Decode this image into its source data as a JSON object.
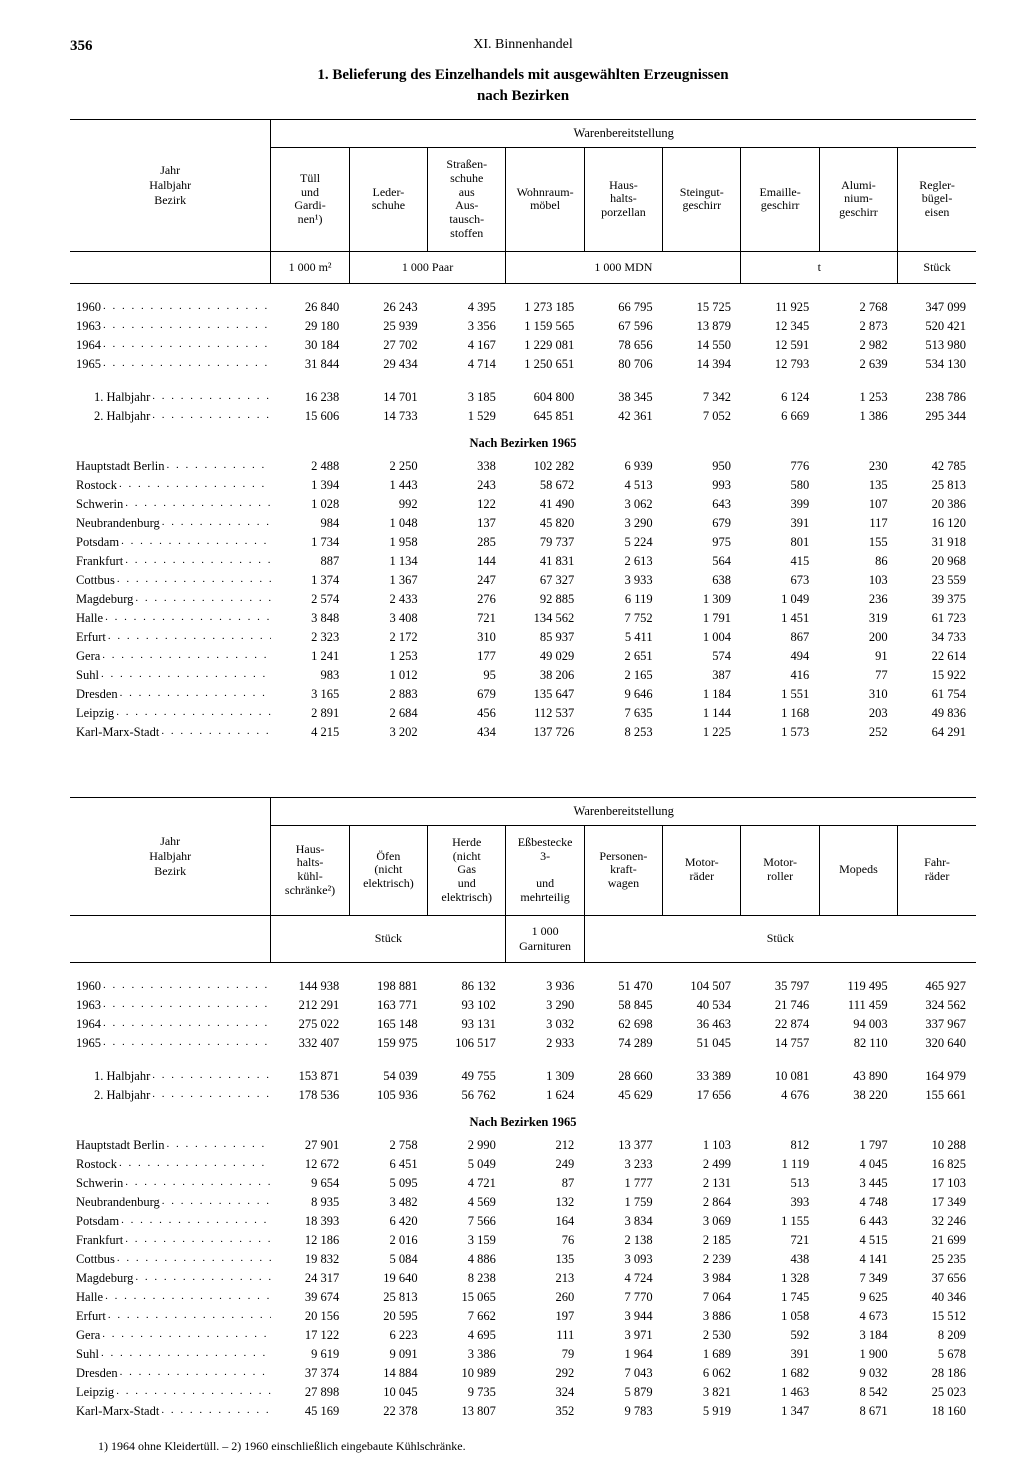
{
  "page_number": "356",
  "chapter": "XI. Binnenhandel",
  "title_line1": "1. Belieferung des Einzelhandels mit ausgewählten Erzeugnissen",
  "title_line2": "nach Bezirken",
  "row_header_label": "Jahr\nHalbjahr\nBezirk",
  "span_header": "Warenbereitstellung",
  "section_label": "Nach Bezirken 1965",
  "footnote": "1) 1964 ohne Kleidertüll. – 2) 1960 einschließlich eingebaute Kühlschränke.",
  "table1": {
    "cols": [
      "Tüll und Gardi-nen¹)",
      "Leder-schuhe",
      "Straßen-schuhe aus Aus-tausch-stoffen",
      "Wohnraum-möbel",
      "Haus-halts-porzellan",
      "Steingut-geschirr",
      "Emaille-geschirr",
      "Alumi-nium-geschirr",
      "Regler-bügel-eisen"
    ],
    "units": [
      "1 000 m²",
      "1 000 Paar",
      "",
      "1 000 MDN",
      "",
      "",
      "t",
      "",
      "Stück"
    ],
    "unit_spans": [
      1,
      2,
      0,
      3,
      0,
      0,
      2,
      0,
      1
    ],
    "years": [
      {
        "l": "1960",
        "v": [
          "26 840",
          "26 243",
          "4 395",
          "1 273 185",
          "66 795",
          "15 725",
          "11 925",
          "2 768",
          "347 099"
        ]
      },
      {
        "l": "1963",
        "v": [
          "29 180",
          "25 939",
          "3 356",
          "1 159 565",
          "67 596",
          "13 879",
          "12 345",
          "2 873",
          "520 421"
        ]
      },
      {
        "l": "1964",
        "v": [
          "30 184",
          "27 702",
          "4 167",
          "1 229 081",
          "78 656",
          "14 550",
          "12 591",
          "2 982",
          "513 980"
        ]
      },
      {
        "l": "1965",
        "v": [
          "31 844",
          "29 434",
          "4 714",
          "1 250 651",
          "80 706",
          "14 394",
          "12 793",
          "2 639",
          "534 130"
        ]
      }
    ],
    "halves": [
      {
        "l": "1. Halbjahr",
        "v": [
          "16 238",
          "14 701",
          "3 185",
          "604 800",
          "38 345",
          "7 342",
          "6 124",
          "1 253",
          "238 786"
        ]
      },
      {
        "l": "2. Halbjahr",
        "v": [
          "15 606",
          "14 733",
          "1 529",
          "645 851",
          "42 361",
          "7 052",
          "6 669",
          "1 386",
          "295 344"
        ]
      }
    ],
    "bezirke": [
      {
        "l": "Hauptstadt Berlin",
        "v": [
          "2 488",
          "2 250",
          "338",
          "102 282",
          "6 939",
          "950",
          "776",
          "230",
          "42 785"
        ]
      },
      {
        "l": "Rostock",
        "v": [
          "1 394",
          "1 443",
          "243",
          "58 672",
          "4 513",
          "993",
          "580",
          "135",
          "25 813"
        ]
      },
      {
        "l": "Schwerin",
        "v": [
          "1 028",
          "992",
          "122",
          "41 490",
          "3 062",
          "643",
          "399",
          "107",
          "20 386"
        ]
      },
      {
        "l": "Neubrandenburg",
        "v": [
          "984",
          "1 048",
          "137",
          "45 820",
          "3 290",
          "679",
          "391",
          "117",
          "16 120"
        ]
      },
      {
        "l": "Potsdam",
        "v": [
          "1 734",
          "1 958",
          "285",
          "79 737",
          "5 224",
          "975",
          "801",
          "155",
          "31 918"
        ]
      },
      {
        "l": "Frankfurt",
        "v": [
          "887",
          "1 134",
          "144",
          "41 831",
          "2 613",
          "564",
          "415",
          "86",
          "20 968"
        ]
      },
      {
        "l": "Cottbus",
        "v": [
          "1 374",
          "1 367",
          "247",
          "67 327",
          "3 933",
          "638",
          "673",
          "103",
          "23 559"
        ]
      },
      {
        "l": "Magdeburg",
        "v": [
          "2 574",
          "2 433",
          "276",
          "92 885",
          "6 119",
          "1 309",
          "1 049",
          "236",
          "39 375"
        ]
      },
      {
        "l": "Halle",
        "v": [
          "3 848",
          "3 408",
          "721",
          "134 562",
          "7 752",
          "1 791",
          "1 451",
          "319",
          "61 723"
        ]
      },
      {
        "l": "Erfurt",
        "v": [
          "2 323",
          "2 172",
          "310",
          "85 937",
          "5 411",
          "1 004",
          "867",
          "200",
          "34 733"
        ]
      },
      {
        "l": "Gera",
        "v": [
          "1 241",
          "1 253",
          "177",
          "49 029",
          "2 651",
          "574",
          "494",
          "91",
          "22 614"
        ]
      },
      {
        "l": "Suhl",
        "v": [
          "983",
          "1 012",
          "95",
          "38 206",
          "2 165",
          "387",
          "416",
          "77",
          "15 922"
        ]
      },
      {
        "l": "Dresden",
        "v": [
          "3 165",
          "2 883",
          "679",
          "135 647",
          "9 646",
          "1 184",
          "1 551",
          "310",
          "61 754"
        ]
      },
      {
        "l": "Leipzig",
        "v": [
          "2 891",
          "2 684",
          "456",
          "112 537",
          "7 635",
          "1 144",
          "1 168",
          "203",
          "49 836"
        ]
      },
      {
        "l": "Karl-Marx-Stadt",
        "v": [
          "4 215",
          "3 202",
          "434",
          "137 726",
          "8 253",
          "1 225",
          "1 573",
          "252",
          "64 291"
        ]
      }
    ]
  },
  "table2": {
    "cols": [
      "Haus-halts-kühl-schränke²)",
      "Öfen (nicht elektrisch)",
      "Herde (nicht Gas und elektrisch)",
      "Eßbestecke 3- und mehrteilig",
      "Personen-kraft-wagen",
      "Motor-räder",
      "Motor-roller",
      "Mopeds",
      "Fahr-räder"
    ],
    "units": [
      "Stück",
      "",
      "",
      "1 000 Garnituren",
      "Stück",
      "",
      "",
      "",
      ""
    ],
    "unit_spans": [
      3,
      0,
      0,
      1,
      5,
      0,
      0,
      0,
      0
    ],
    "years": [
      {
        "l": "1960",
        "v": [
          "144 938",
          "198 881",
          "86 132",
          "3 936",
          "51 470",
          "104 507",
          "35 797",
          "119 495",
          "465 927"
        ]
      },
      {
        "l": "1963",
        "v": [
          "212 291",
          "163 771",
          "93 102",
          "3 290",
          "58 845",
          "40 534",
          "21 746",
          "111 459",
          "324 562"
        ]
      },
      {
        "l": "1964",
        "v": [
          "275 022",
          "165 148",
          "93 131",
          "3 032",
          "62 698",
          "36 463",
          "22 874",
          "94 003",
          "337 967"
        ]
      },
      {
        "l": "1965",
        "v": [
          "332 407",
          "159 975",
          "106 517",
          "2 933",
          "74 289",
          "51 045",
          "14 757",
          "82 110",
          "320 640"
        ]
      }
    ],
    "halves": [
      {
        "l": "1. Halbjahr",
        "v": [
          "153 871",
          "54 039",
          "49 755",
          "1 309",
          "28 660",
          "33 389",
          "10 081",
          "43 890",
          "164 979"
        ]
      },
      {
        "l": "2. Halbjahr",
        "v": [
          "178 536",
          "105 936",
          "56 762",
          "1 624",
          "45 629",
          "17 656",
          "4 676",
          "38 220",
          "155 661"
        ]
      }
    ],
    "bezirke": [
      {
        "l": "Hauptstadt Berlin",
        "v": [
          "27 901",
          "2 758",
          "2 990",
          "212",
          "13 377",
          "1 103",
          "812",
          "1 797",
          "10 288"
        ]
      },
      {
        "l": "Rostock",
        "v": [
          "12 672",
          "6 451",
          "5 049",
          "249",
          "3 233",
          "2 499",
          "1 119",
          "4 045",
          "16 825"
        ]
      },
      {
        "l": "Schwerin",
        "v": [
          "9 654",
          "5 095",
          "4 721",
          "87",
          "1 777",
          "2 131",
          "513",
          "3 445",
          "17 103"
        ]
      },
      {
        "l": "Neubrandenburg",
        "v": [
          "8 935",
          "3 482",
          "4 569",
          "132",
          "1 759",
          "2 864",
          "393",
          "4 748",
          "17 349"
        ]
      },
      {
        "l": "Potsdam",
        "v": [
          "18 393",
          "6 420",
          "7 566",
          "164",
          "3 834",
          "3 069",
          "1 155",
          "6 443",
          "32 246"
        ]
      },
      {
        "l": "Frankfurt",
        "v": [
          "12 186",
          "2 016",
          "3 159",
          "76",
          "2 138",
          "2 185",
          "721",
          "4 515",
          "21 699"
        ]
      },
      {
        "l": "Cottbus",
        "v": [
          "19 832",
          "5 084",
          "4 886",
          "135",
          "3 093",
          "2 239",
          "438",
          "4 141",
          "25 235"
        ]
      },
      {
        "l": "Magdeburg",
        "v": [
          "24 317",
          "19 640",
          "8 238",
          "213",
          "4 724",
          "3 984",
          "1 328",
          "7 349",
          "37 656"
        ]
      },
      {
        "l": "Halle",
        "v": [
          "39 674",
          "25 813",
          "15 065",
          "260",
          "7 770",
          "7 064",
          "1 745",
          "9 625",
          "40 346"
        ]
      },
      {
        "l": "Erfurt",
        "v": [
          "20 156",
          "20 595",
          "7 662",
          "197",
          "3 944",
          "3 886",
          "1 058",
          "4 673",
          "15 512"
        ]
      },
      {
        "l": "Gera",
        "v": [
          "17 122",
          "6 223",
          "4 695",
          "111",
          "3 971",
          "2 530",
          "592",
          "3 184",
          "8 209"
        ]
      },
      {
        "l": "Suhl",
        "v": [
          "9 619",
          "9 091",
          "3 386",
          "79",
          "1 964",
          "1 689",
          "391",
          "1 900",
          "5 678"
        ]
      },
      {
        "l": "Dresden",
        "v": [
          "37 374",
          "14 884",
          "10 989",
          "292",
          "7 043",
          "6 062",
          "1 682",
          "9 032",
          "28 186"
        ]
      },
      {
        "l": "Leipzig",
        "v": [
          "27 898",
          "10 045",
          "9 735",
          "324",
          "5 879",
          "3 821",
          "1 463",
          "8 542",
          "25 023"
        ]
      },
      {
        "l": "Karl-Marx-Stadt",
        "v": [
          "45 169",
          "22 378",
          "13 807",
          "352",
          "9 783",
          "5 919",
          "1 347",
          "8 671",
          "18 160"
        ]
      }
    ]
  }
}
